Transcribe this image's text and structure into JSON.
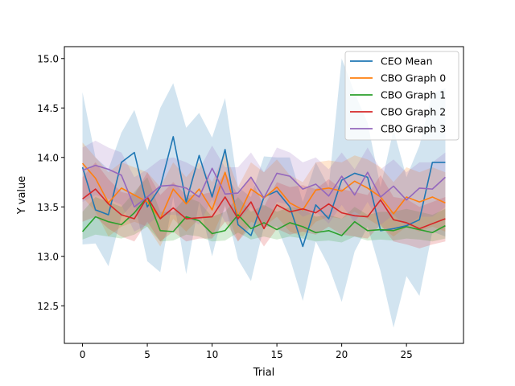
{
  "chart_data": {
    "type": "line",
    "title": "",
    "xlabel": "Trial",
    "ylabel": "Y value",
    "xlim": [
      -1.4,
      29.4
    ],
    "ylim": [
      12.12,
      15.12
    ],
    "xticks": [
      0,
      5,
      10,
      15,
      20,
      25
    ],
    "yticks": [
      12.5,
      13.0,
      13.5,
      14.0,
      14.5,
      15.0
    ],
    "ytick_labels": [
      "12.5",
      "13.0",
      "13.5",
      "14.0",
      "14.5",
      "15.0"
    ],
    "legend_position": "upper right",
    "grid": false,
    "x": [
      0,
      1,
      2,
      3,
      4,
      5,
      6,
      7,
      8,
      9,
      10,
      11,
      12,
      13,
      14,
      15,
      16,
      17,
      18,
      19,
      20,
      21,
      22,
      23,
      24,
      25,
      26,
      27,
      28
    ],
    "series": [
      {
        "name": "CEO Mean",
        "color": "#1f77b4",
        "values": [
          13.9,
          13.47,
          13.42,
          13.95,
          14.05,
          13.5,
          13.7,
          14.21,
          13.55,
          14.02,
          13.6,
          14.08,
          13.32,
          13.21,
          13.6,
          13.66,
          13.5,
          13.1,
          13.52,
          13.38,
          13.77,
          13.84,
          13.8,
          13.26,
          13.28,
          13.31,
          13.37,
          13.95,
          13.95
        ],
        "lower": [
          13.12,
          13.13,
          12.9,
          13.4,
          13.55,
          12.95,
          12.84,
          13.6,
          12.82,
          13.55,
          13.0,
          13.52,
          12.97,
          12.75,
          13.3,
          13.3,
          12.98,
          12.55,
          13.15,
          12.9,
          12.54,
          13.05,
          13.3,
          12.85,
          12.28,
          12.8,
          12.6,
          13.25,
          13.2
        ],
        "upper": [
          14.66,
          14.0,
          13.88,
          14.25,
          14.48,
          14.07,
          14.5,
          14.75,
          14.3,
          14.45,
          14.2,
          14.6,
          13.7,
          13.6,
          14.01,
          14.0,
          14.0,
          13.55,
          13.95,
          13.7,
          15.0,
          14.65,
          14.35,
          13.7,
          14.28,
          13.8,
          14.12,
          14.65,
          14.7
        ]
      },
      {
        "name": "CBO Graph 0",
        "color": "#ff7f0e",
        "values": [
          13.94,
          13.79,
          13.54,
          13.69,
          13.62,
          13.55,
          13.38,
          13.68,
          13.53,
          13.68,
          13.47,
          13.85,
          13.4,
          13.68,
          13.59,
          13.7,
          13.54,
          13.47,
          13.67,
          13.69,
          13.66,
          13.76,
          13.69,
          13.6,
          13.43,
          13.6,
          13.55,
          13.6,
          13.54
        ],
        "lower": [
          13.6,
          13.45,
          13.2,
          13.3,
          13.35,
          13.3,
          13.1,
          13.38,
          13.25,
          13.38,
          13.2,
          13.5,
          13.15,
          13.35,
          13.3,
          13.4,
          13.25,
          13.2,
          13.35,
          13.4,
          13.38,
          13.45,
          13.38,
          13.3,
          13.2,
          13.3,
          13.25,
          13.3,
          13.25
        ],
        "upper": [
          14.15,
          14.0,
          13.85,
          13.95,
          13.9,
          13.85,
          13.7,
          13.95,
          13.8,
          13.95,
          13.75,
          14.05,
          13.7,
          13.95,
          13.85,
          13.98,
          13.82,
          13.75,
          13.95,
          13.97,
          13.95,
          14.02,
          13.98,
          13.9,
          13.75,
          13.9,
          13.85,
          13.9,
          13.85
        ]
      },
      {
        "name": "CBO Graph 1",
        "color": "#2ca02c",
        "values": [
          13.25,
          13.4,
          13.35,
          13.32,
          13.44,
          13.6,
          13.26,
          13.25,
          13.4,
          13.36,
          13.23,
          13.26,
          13.42,
          13.28,
          13.34,
          13.27,
          13.34,
          13.3,
          13.24,
          13.26,
          13.21,
          13.35,
          13.26,
          13.27,
          13.26,
          13.3,
          13.27,
          13.24,
          13.31
        ],
        "lower": [
          13.17,
          13.22,
          13.2,
          13.18,
          13.22,
          13.3,
          13.15,
          13.16,
          13.22,
          13.2,
          13.15,
          13.16,
          13.24,
          13.17,
          13.2,
          13.17,
          13.2,
          13.18,
          13.15,
          13.16,
          13.14,
          13.2,
          13.16,
          13.17,
          13.16,
          13.18,
          13.17,
          13.15,
          13.18
        ],
        "upper": [
          13.45,
          13.6,
          13.55,
          13.5,
          13.65,
          13.8,
          13.45,
          13.45,
          13.6,
          13.55,
          13.4,
          13.45,
          13.6,
          13.45,
          13.52,
          13.45,
          13.5,
          13.48,
          13.4,
          13.42,
          13.38,
          13.5,
          13.42,
          13.45,
          13.45,
          13.48,
          13.45,
          13.42,
          13.48
        ]
      },
      {
        "name": "CBO Graph 2",
        "color": "#d62728",
        "values": [
          13.58,
          13.68,
          13.53,
          13.42,
          13.38,
          13.6,
          13.38,
          13.49,
          13.38,
          13.39,
          13.4,
          13.6,
          13.38,
          13.55,
          13.28,
          13.52,
          13.45,
          13.48,
          13.44,
          13.53,
          13.44,
          13.41,
          13.4,
          13.57,
          13.37,
          13.34,
          13.28,
          13.33,
          13.38
        ],
        "lower": [
          13.35,
          13.4,
          13.28,
          13.2,
          13.15,
          13.35,
          13.15,
          13.25,
          13.15,
          13.18,
          13.18,
          13.35,
          13.15,
          13.3,
          13.1,
          13.28,
          13.22,
          13.25,
          13.22,
          13.3,
          13.22,
          13.2,
          13.18,
          13.32,
          13.15,
          13.12,
          13.08,
          13.12,
          13.15
        ],
        "upper": [
          13.8,
          13.95,
          13.78,
          13.65,
          13.62,
          13.85,
          13.62,
          13.75,
          13.62,
          13.62,
          13.65,
          13.85,
          13.62,
          13.8,
          13.5,
          13.75,
          13.7,
          13.72,
          13.68,
          13.78,
          13.68,
          13.65,
          13.62,
          13.82,
          13.6,
          13.58,
          13.5,
          13.55,
          13.6
        ]
      },
      {
        "name": "CBO Graph 3",
        "color": "#9467bd",
        "values": [
          13.87,
          13.92,
          13.88,
          13.82,
          13.5,
          13.6,
          13.71,
          13.72,
          13.69,
          13.6,
          13.89,
          13.63,
          13.64,
          13.8,
          13.59,
          13.84,
          13.81,
          13.68,
          13.73,
          13.61,
          13.81,
          13.62,
          13.85,
          13.6,
          13.71,
          13.57,
          13.69,
          13.68,
          13.8
        ],
        "lower": [
          13.55,
          13.62,
          13.58,
          13.52,
          13.25,
          13.32,
          13.42,
          13.42,
          13.4,
          13.32,
          13.58,
          13.35,
          13.36,
          13.5,
          13.3,
          13.55,
          13.52,
          13.4,
          13.45,
          13.33,
          13.52,
          13.34,
          13.55,
          13.32,
          13.42,
          13.3,
          13.4,
          13.4,
          13.5
        ],
        "upper": [
          14.1,
          14.17,
          14.1,
          14.05,
          13.8,
          13.88,
          13.98,
          14.0,
          13.95,
          13.88,
          14.12,
          13.9,
          13.9,
          14.05,
          13.85,
          14.1,
          14.05,
          13.95,
          14.0,
          13.88,
          14.05,
          13.88,
          14.1,
          13.88,
          13.98,
          13.85,
          13.95,
          13.95,
          14.05
        ]
      }
    ]
  }
}
